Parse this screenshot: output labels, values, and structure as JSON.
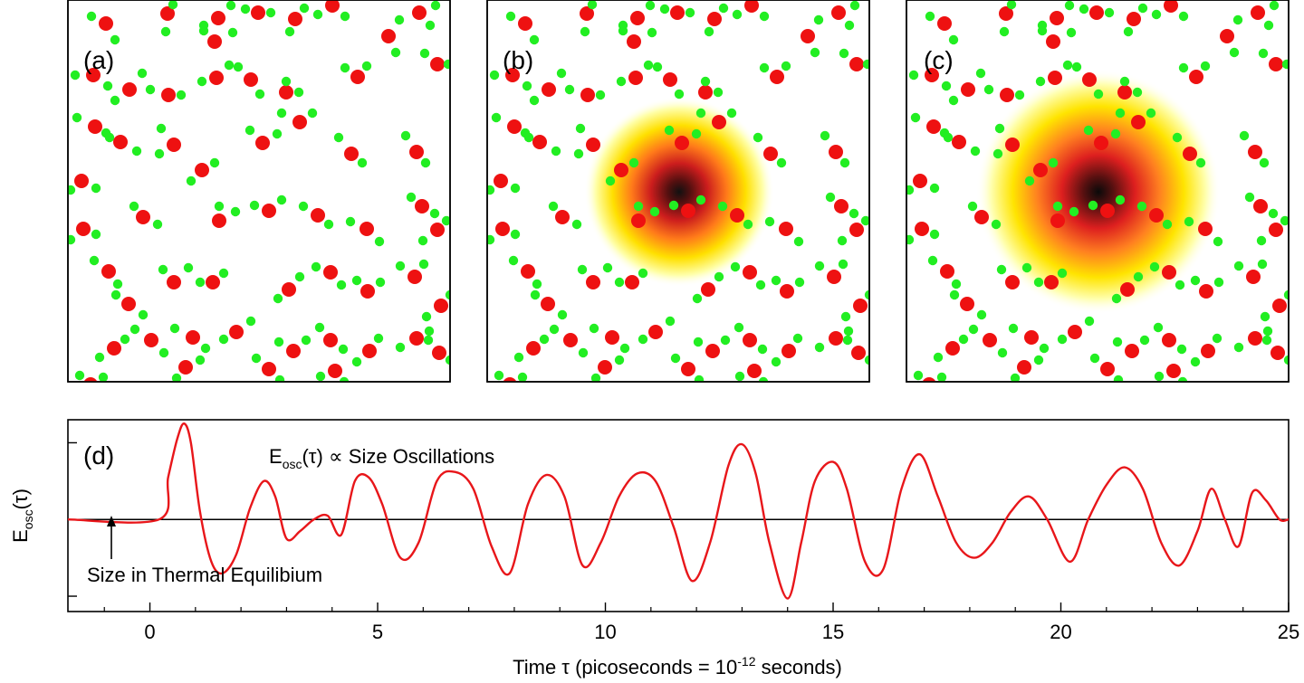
{
  "panels": {
    "labels": [
      "(a)",
      "(b)",
      "(c)"
    ],
    "oxygen_color": "#ee1111",
    "hydrogen_color": "#22ee22",
    "heat_spot": {
      "panel_b": {
        "intensity": 0.75
      },
      "panel_c": {
        "intensity": 1.0
      }
    }
  },
  "chart_data": {
    "type": "line",
    "panel_label": "(d)",
    "title": "",
    "annotation_main": "Size Oscillations",
    "annotation_arrow": "Size in Thermal Equilibium",
    "ylabel": "E",
    "ylabel_sub": "osc",
    "ylabel_arg": "(τ)",
    "eq_symbol": "E",
    "eq_sub": "osc",
    "eq_rest": "(τ) ∝ ",
    "xlabel": "Time τ (picoseconds = 10",
    "xlabel_exp": "-12",
    "xlabel_end": " seconds)",
    "xlim": [
      -1.8,
      25
    ],
    "ylim": [
      -1.2,
      1.3
    ],
    "xticks": [
      0,
      5,
      10,
      15,
      20,
      25
    ],
    "xtick_labels": [
      "0",
      "5",
      "10",
      "15",
      "20",
      "25"
    ],
    "yticks": [
      -1,
      0,
      1
    ],
    "line_color": "#e8161a",
    "zero_line": true,
    "series": [
      {
        "x": [
          -1.8,
          0.2,
          0.4,
          0.6,
          0.75,
          0.9,
          1.1,
          1.35,
          1.6,
          1.9,
          2.2,
          2.5,
          2.75,
          3.0,
          3.3,
          3.6,
          3.9,
          4.2,
          4.5,
          4.8,
          5.1,
          5.5,
          5.9,
          6.3,
          6.7,
          7.1,
          7.5,
          7.9,
          8.3,
          8.7,
          9.1,
          9.5,
          9.9,
          10.3,
          10.7,
          11.1,
          11.5,
          11.9,
          12.3,
          12.7,
          13.0,
          13.3,
          13.6,
          14.0,
          14.3,
          14.6,
          15.0,
          15.3,
          15.7,
          16.1,
          16.5,
          16.9,
          17.3,
          17.7,
          18.1,
          18.5,
          18.9,
          19.3,
          19.7,
          20.2,
          20.6,
          21.0,
          21.4,
          21.8,
          22.2,
          22.6,
          23.0,
          23.3,
          23.6,
          23.9,
          24.2,
          24.5,
          24.8,
          25.0
        ],
        "y": [
          0.0,
          0.0,
          0.55,
          1.05,
          1.25,
          1.0,
          0.1,
          -0.55,
          -0.7,
          -0.45,
          0.15,
          0.5,
          0.3,
          -0.25,
          -0.15,
          0.0,
          0.05,
          -0.2,
          0.5,
          0.55,
          0.2,
          -0.5,
          -0.3,
          0.5,
          0.62,
          0.4,
          -0.35,
          -0.7,
          0.2,
          0.58,
          0.3,
          -0.6,
          -0.3,
          0.3,
          0.6,
          0.5,
          -0.1,
          -0.8,
          -0.3,
          0.7,
          0.98,
          0.6,
          -0.3,
          -1.03,
          -0.3,
          0.5,
          0.75,
          0.4,
          -0.55,
          -0.65,
          0.4,
          0.85,
          0.3,
          -0.3,
          -0.5,
          -0.3,
          0.1,
          0.3,
          0.0,
          -0.55,
          0.0,
          0.45,
          0.68,
          0.4,
          -0.3,
          -0.6,
          -0.15,
          0.4,
          0.0,
          -0.35,
          0.35,
          0.25,
          0.0,
          0.0
        ]
      }
    ]
  }
}
